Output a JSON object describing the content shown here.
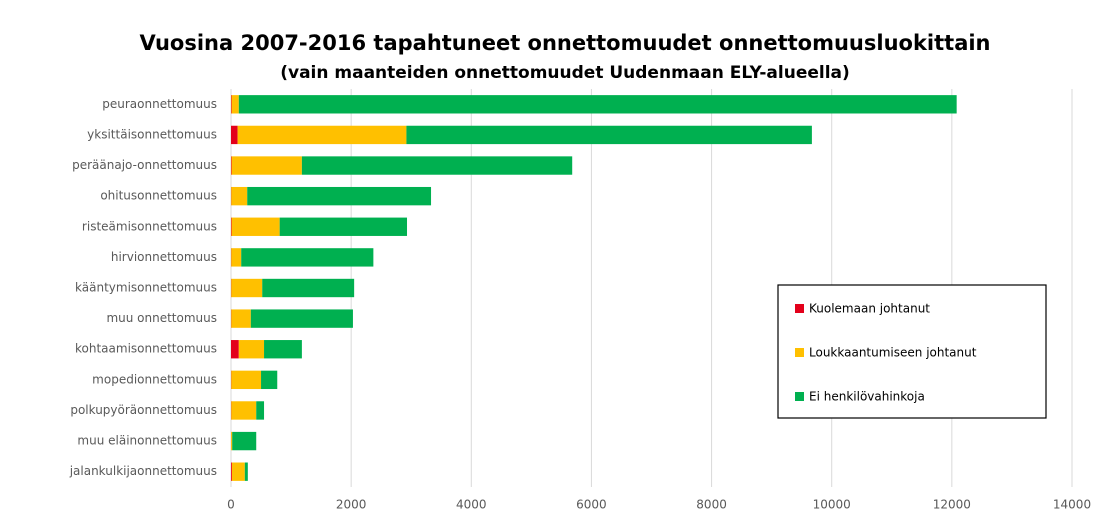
{
  "chart_data": {
    "type": "stacked-barh",
    "title": "Vuosina 2007-2016 tapahtuneet onnettomuudet onnettomuusluokittain",
    "subtitle": "(vain maanteiden onnettomuudet Uudenmaan ELY-alueella)",
    "categories": [
      "peuraonnettomuus",
      "yksittäisonnettomuus",
      "peräänajo-onnettomuus",
      "ohitusonnettomuus",
      "risteämisonnettomuus",
      "hirvionnettomuus",
      "kääntymisonnettomuus",
      "muu onnettomuus",
      "kohtaamisonnettomuus",
      "mopedionnettomuus",
      "polkupyöräonnettomuus",
      "muu eläinonnettomuus",
      "jalankulkijaonnettomuus"
    ],
    "series": [
      {
        "name": "Kuolemaan johtanut",
        "color": "#e3001b",
        "values": [
          10,
          110,
          10,
          5,
          10,
          5,
          5,
          5,
          130,
          5,
          5,
          2,
          15
        ]
      },
      {
        "name": "Loukkaantumiseen johtanut",
        "color": "#ffc000",
        "values": [
          120,
          2810,
          1170,
          265,
          800,
          165,
          515,
          325,
          420,
          495,
          415,
          18,
          215
        ]
      },
      {
        "name": "Ei henkilövahinkoja",
        "color": "#00b050",
        "values": [
          11950,
          6750,
          4500,
          3060,
          2120,
          2200,
          1530,
          1700,
          630,
          270,
          130,
          400,
          50
        ]
      }
    ],
    "xlim": [
      0,
      14000
    ],
    "xticks": [
      0,
      2000,
      4000,
      6000,
      8000,
      10000,
      12000,
      14000
    ],
    "grid": true
  }
}
